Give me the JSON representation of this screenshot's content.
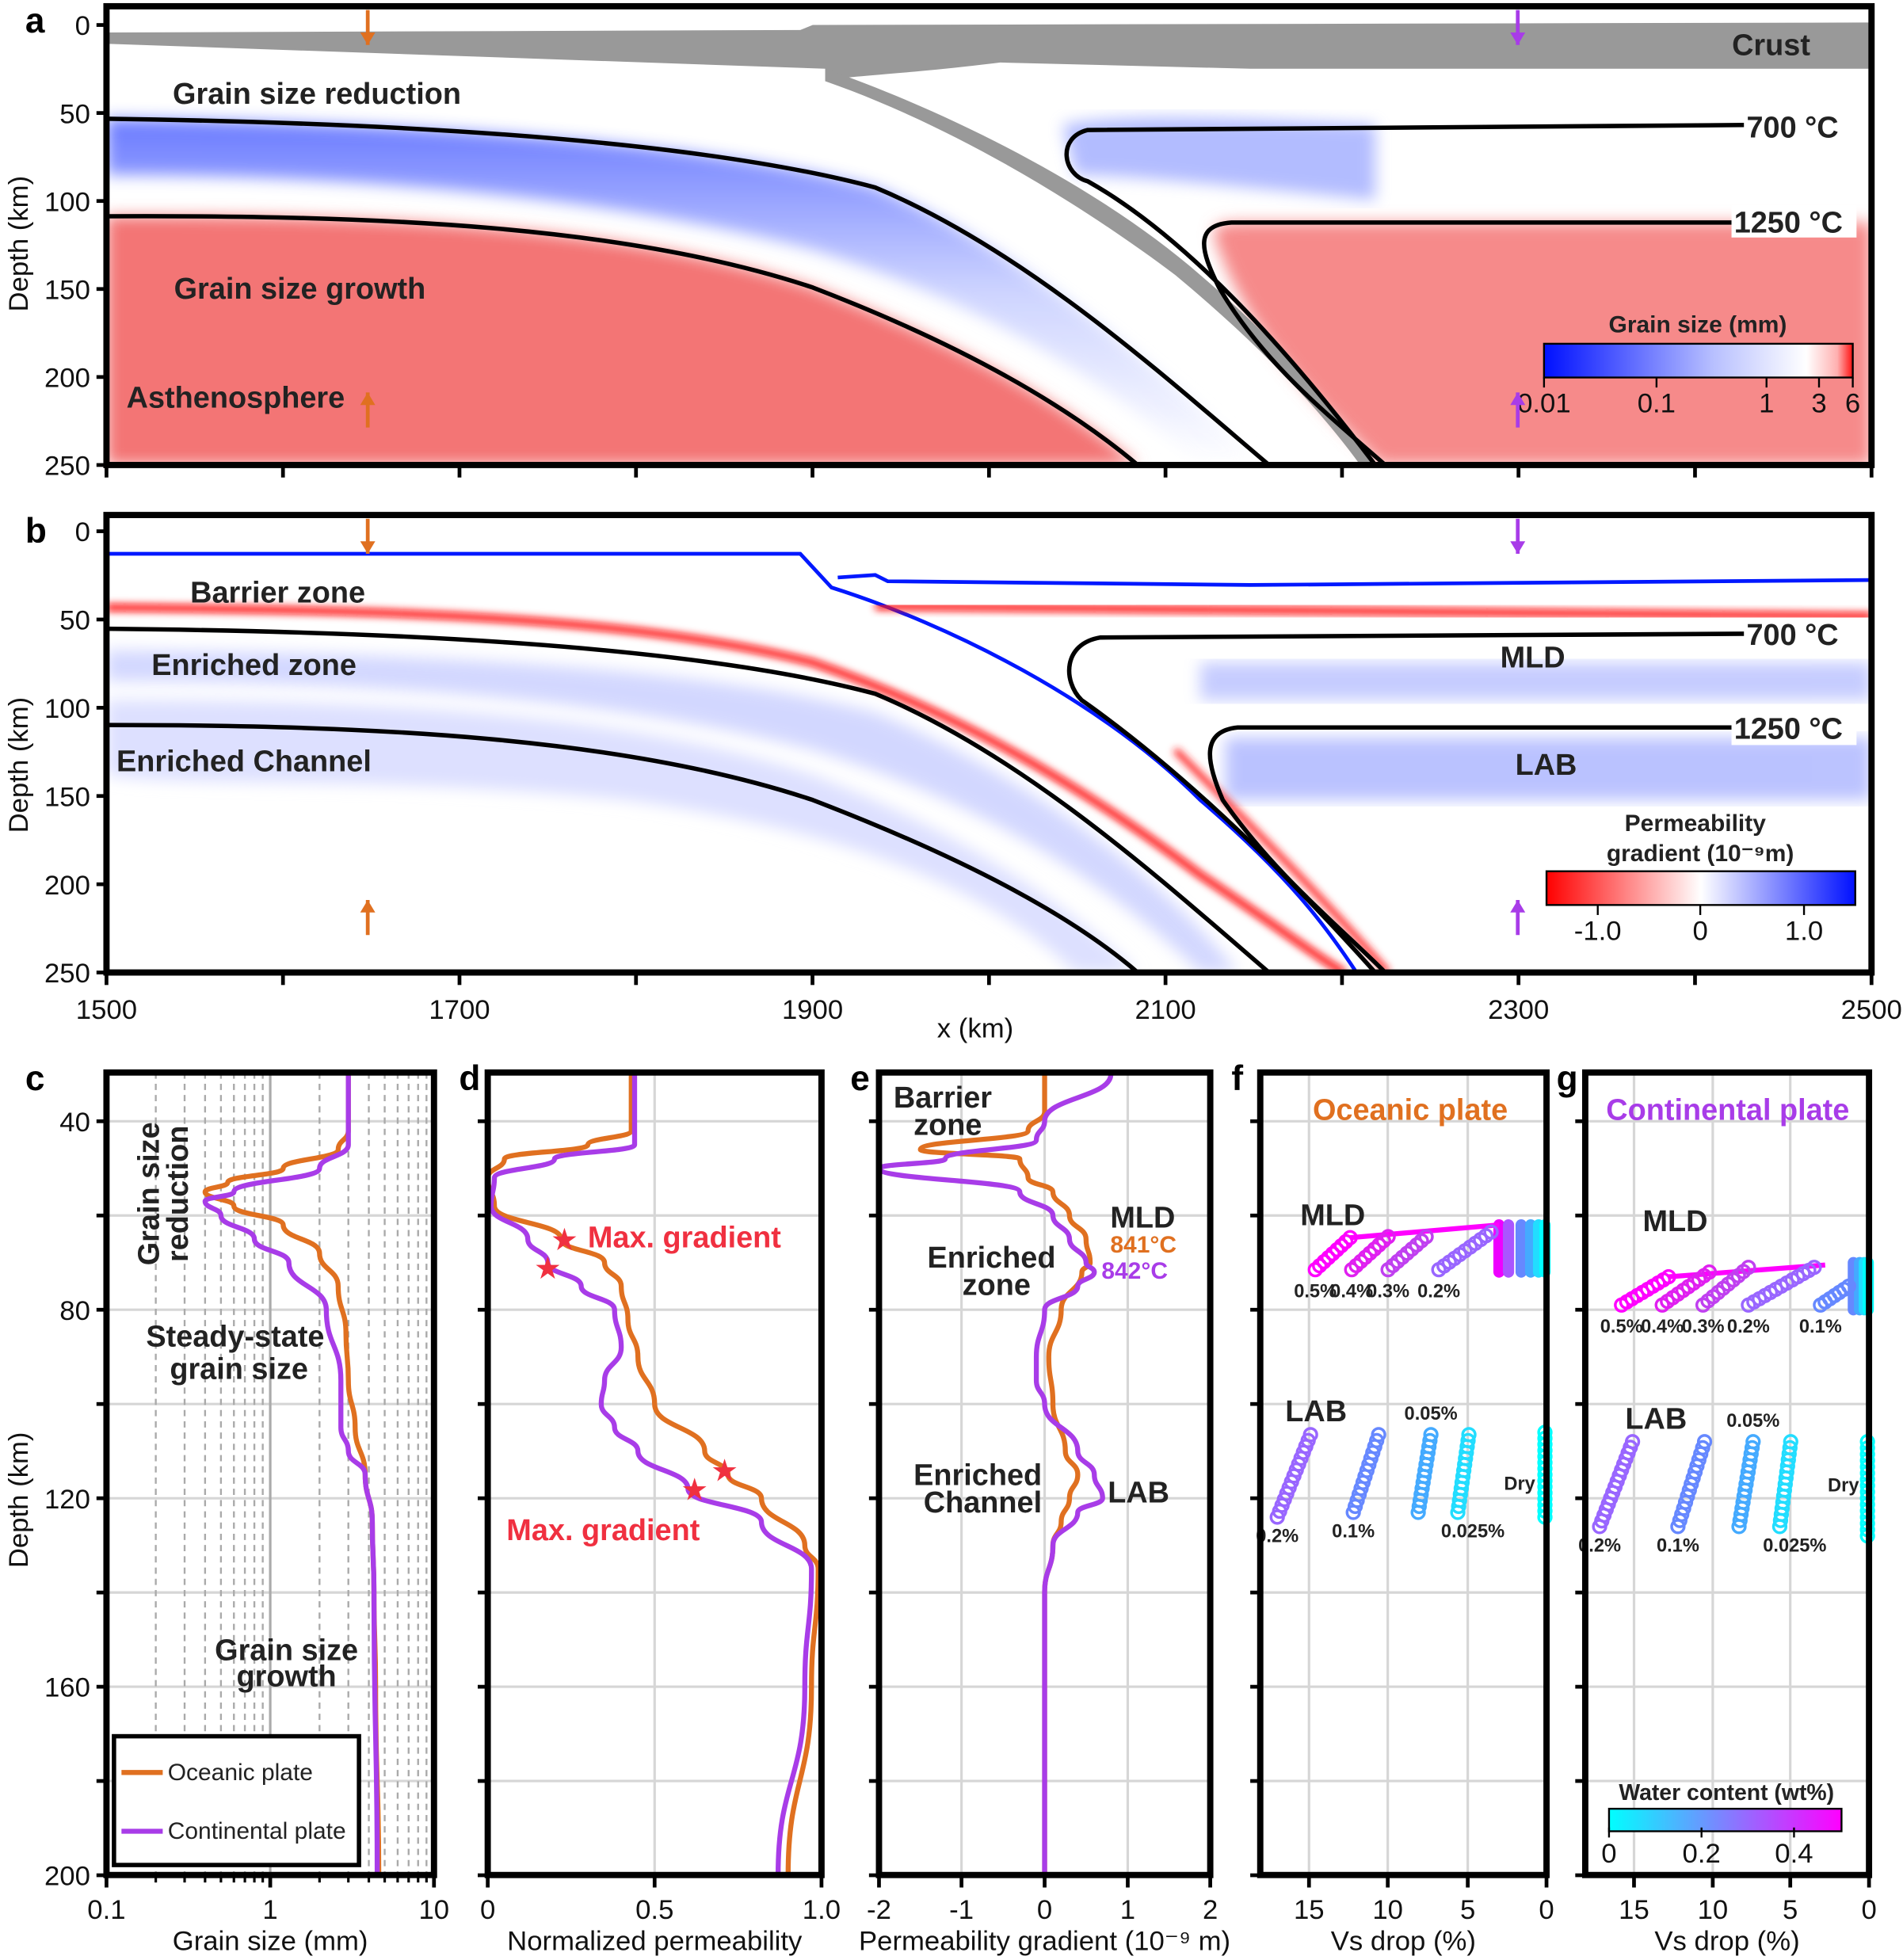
{
  "colors": {
    "oceanic": "#e07020",
    "continental": "#a83ce8",
    "red_label": "#f03040",
    "black": "#000000"
  },
  "panel_a": {
    "letter": "a",
    "ylabel": "Depth (km)",
    "yticks": [
      "0",
      "50",
      "100",
      "150",
      "200",
      "250"
    ],
    "labels": {
      "crust": "Crust",
      "reduction": "Grain size reduction",
      "growth": "Grain size growth",
      "astheno": "Asthenosphere",
      "c700": "700 °C",
      "c1250": "1250 °C"
    },
    "colorbar": {
      "title": "Grain size (mm)",
      "ticks": [
        "0.01",
        "0.1",
        "1",
        "3",
        "6"
      ]
    }
  },
  "panel_b": {
    "letter": "b",
    "ylabel": "Depth (km)",
    "yticks": [
      "0",
      "50",
      "100",
      "150",
      "200",
      "250"
    ],
    "labels": {
      "barrier": "Barrier zone",
      "enriched": "Enriched zone",
      "channel": "Enriched Channel",
      "mld": "MLD",
      "lab": "LAB",
      "c700": "700 °C",
      "c1250": "1250 °C"
    },
    "colorbar": {
      "title1": "Permeability",
      "title2": "gradient (10⁻⁹m)",
      "ticks": [
        "-1.0",
        "0",
        "1.0"
      ]
    }
  },
  "xaxis_ab": {
    "label": "x (km)",
    "ticks": [
      "1500",
      "1700",
      "1900",
      "2100",
      "2300",
      "2500"
    ]
  },
  "chart_data": [
    {
      "id": "c",
      "type": "line",
      "letter": "c",
      "xlabel": "Grain size (mm)",
      "ylabel": "Depth (km)",
      "xscale": "log",
      "xlim": [
        0.1,
        10
      ],
      "ylim": [
        200,
        30
      ],
      "xticks": [
        "0.1",
        "1",
        "10"
      ],
      "yticks": [
        "40",
        "80",
        "120",
        "160",
        "200"
      ],
      "annotations": {
        "reduction1": "Grain size",
        "reduction2": "reduction",
        "steady1": "Steady-state",
        "steady2": "grain size",
        "growth1": "Grain size",
        "growth2": "growth"
      },
      "legend": {
        "placement": "bottom-left",
        "entries": [
          "Oceanic plate",
          "Continental plate"
        ]
      },
      "series": [
        {
          "name": "Oceanic plate",
          "depth": [
            30,
            42,
            46,
            50,
            53,
            55,
            58,
            62,
            68,
            75,
            85,
            95,
            105,
            115,
            125,
            140,
            160,
            200
          ],
          "value": [
            3,
            3,
            2.6,
            1.2,
            0.55,
            0.4,
            0.6,
            1.2,
            2,
            2.6,
            2.9,
            3,
            3.3,
            3.8,
            4.2,
            4.3,
            4.4,
            4.6
          ]
        },
        {
          "name": "Continental plate",
          "depth": [
            30,
            45,
            50,
            55,
            57,
            60,
            65,
            70,
            80,
            95,
            105,
            110,
            115,
            125,
            140,
            200
          ],
          "value": [
            3,
            3,
            2,
            0.6,
            0.4,
            0.5,
            0.8,
            1.3,
            2.2,
            2.7,
            2.7,
            3.0,
            3.8,
            4.2,
            4.3,
            4.5
          ]
        }
      ]
    },
    {
      "id": "d",
      "type": "line",
      "letter": "d",
      "xlabel": "Normalized permeability",
      "xlim": [
        0,
        1
      ],
      "ylim": [
        200,
        30
      ],
      "xticks": [
        "0",
        "0.5",
        "1.0"
      ],
      "annotations": {
        "maxgrad1": "Max. gradient",
        "maxgrad2": "Max. gradient"
      },
      "series": [
        {
          "name": "Oceanic plate",
          "depth": [
            30,
            42,
            45,
            48,
            52,
            58,
            65,
            70,
            75,
            82,
            90,
            100,
            110,
            115,
            120,
            130,
            135,
            160,
            200
          ],
          "value": [
            0.43,
            0.43,
            0.3,
            0.05,
            0,
            0.02,
            0.22,
            0.35,
            0.4,
            0.42,
            0.45,
            0.5,
            0.65,
            0.72,
            0.82,
            0.95,
            0.99,
            0.97,
            0.9
          ],
          "max_gradient": [
            [
              0.23,
              65
            ],
            [
              0.71,
              114
            ]
          ]
        },
        {
          "name": "Continental plate",
          "depth": [
            30,
            45,
            48,
            52,
            58,
            65,
            70,
            75,
            80,
            88,
            95,
            100,
            105,
            110,
            118,
            125,
            135,
            160,
            200
          ],
          "value": [
            0.44,
            0.44,
            0.2,
            0.02,
            0.01,
            0.12,
            0.18,
            0.28,
            0.38,
            0.4,
            0.35,
            0.34,
            0.38,
            0.45,
            0.6,
            0.82,
            0.97,
            0.95,
            0.87
          ],
          "max_gradient": [
            [
              0.18,
              71
            ],
            [
              0.62,
              118
            ]
          ]
        }
      ]
    },
    {
      "id": "e",
      "type": "line",
      "letter": "e",
      "xlabel": "Permeability gradient (10⁻⁹ m)",
      "xlim": [
        -2,
        2
      ],
      "ylim": [
        200,
        30
      ],
      "xticks": [
        "-2",
        "-1",
        "0",
        "1",
        "2"
      ],
      "annotations": {
        "barrier1": "Barrier",
        "barrier2": "zone",
        "enriched1": "Enriched",
        "enriched2": "zone",
        "channel1": "Enriched",
        "channel2": "Channel",
        "mld": "MLD",
        "t_oc": "841°C",
        "t_co": "842°C",
        "lab": "LAB"
      },
      "series": [
        {
          "name": "Oceanic plate",
          "depth": [
            30,
            38,
            42,
            46,
            48,
            52,
            55,
            60,
            65,
            70,
            72,
            80,
            90,
            100,
            110,
            115,
            120,
            125,
            130,
            140,
            160,
            200
          ],
          "value": [
            0,
            0,
            -0.2,
            -1.5,
            -0.3,
            -0.2,
            0.1,
            0.3,
            0.5,
            0.55,
            0.45,
            0.2,
            0.05,
            0.1,
            0.25,
            0.4,
            0.3,
            0.2,
            0.1,
            0,
            0,
            0
          ]
        },
        {
          "name": "Continental plate",
          "depth": [
            30,
            40,
            44,
            48,
            50,
            55,
            60,
            65,
            70,
            72,
            75,
            80,
            90,
            95,
            100,
            110,
            115,
            120,
            123,
            130,
            140,
            200
          ],
          "value": [
            0.8,
            0,
            -0.1,
            -1.2,
            -2,
            -0.3,
            0.1,
            0.3,
            0.5,
            0.6,
            0.4,
            0,
            -0.1,
            -0.1,
            0,
            0.4,
            0.6,
            0.7,
            0.4,
            0.1,
            0,
            0
          ]
        }
      ]
    },
    {
      "id": "f",
      "type": "scatter",
      "letter": "f",
      "title": "Oceanic  plate",
      "xlabel": "Vs drop (%)",
      "xlim": [
        17,
        0
      ],
      "ylim": [
        200,
        30
      ],
      "xticks": [
        "15",
        "10",
        "5",
        "0"
      ],
      "annotations": {
        "mld": "MLD",
        "lab": "LAB",
        "dry": "Dry"
      },
      "mld_series": [
        {
          "name": "0.5%",
          "color": "#ff00ff",
          "points": [
            [
              14.6,
              71.5
            ],
            [
              12.4,
              64.7
            ]
          ]
        },
        {
          "name": "0.4%",
          "color": "#e020f0",
          "points": [
            [
              12.3,
              71.5
            ],
            [
              10.0,
              64.5
            ]
          ]
        },
        {
          "name": "0.3%",
          "color": "#c040f0",
          "points": [
            [
              10.0,
              71.5
            ],
            [
              7.6,
              64.5
            ]
          ]
        },
        {
          "name": "0.2%",
          "color": "#9966ff",
          "points": [
            [
              6.8,
              71.5
            ],
            [
              3.5,
              63.5
            ]
          ]
        }
      ],
      "mld_link": [
        [
          12.4,
          64.7
        ],
        [
          3.0,
          62
        ]
      ],
      "mld_bars": [
        {
          "color": "#ee00ff",
          "vs": 3.0
        },
        {
          "color": "#aa55ff",
          "vs": 2.4
        },
        {
          "color": "#6688ff",
          "vs": 1.6
        },
        {
          "color": "#44aaff",
          "vs": 1.0
        },
        {
          "color": "#22ddff",
          "vs": 0.5
        },
        {
          "color": "#00ffff",
          "vs": 0.1
        }
      ],
      "mld_bar_depth": [
        62,
        72
      ],
      "lab_series": [
        {
          "name": "0.2%",
          "color": "#9966ff",
          "points": [
            [
              17.0,
              124
            ],
            [
              14.9,
              106.5
            ]
          ]
        },
        {
          "name": "0.1%",
          "color": "#6688ff",
          "points": [
            [
              12.2,
              123
            ],
            [
              10.6,
              106.5
            ]
          ]
        },
        {
          "name": "0.05%",
          "color": "#44aaff",
          "points": [
            [
              8.1,
              123
            ],
            [
              7.3,
              106.5
            ]
          ]
        },
        {
          "name": "0.025%",
          "color": "#22ddff",
          "points": [
            [
              5.6,
              123
            ],
            [
              4.9,
              106.5
            ]
          ]
        },
        {
          "name": "Dry",
          "color": "#00ffff",
          "points": [
            [
              0.1,
              124
            ],
            [
              0.1,
              106
            ]
          ]
        }
      ]
    },
    {
      "id": "g",
      "type": "scatter",
      "letter": "g",
      "title": "Continental  plate",
      "xlabel": "Vs drop (%)",
      "xlim": [
        18,
        0
      ],
      "ylim": [
        200,
        30
      ],
      "xticks": [
        "15",
        "10",
        "5",
        "0"
      ],
      "annotations": {
        "mld": "MLD",
        "lab": "LAB",
        "dry": "Dry"
      },
      "colorbar": {
        "title": "Water content (wt%)",
        "ticks": [
          "0",
          "0.2",
          "0.4"
        ]
      },
      "mld_series": [
        {
          "name": "0.5%",
          "color": "#ff00ff",
          "points": [
            [
              15.8,
              79
            ],
            [
              12.8,
              73
            ]
          ]
        },
        {
          "name": "0.4%",
          "color": "#e020f0",
          "points": [
            [
              13.2,
              79
            ],
            [
              10.2,
              72
            ]
          ]
        },
        {
          "name": "0.3%",
          "color": "#c040f0",
          "points": [
            [
              10.6,
              79
            ],
            [
              7.7,
              71
            ]
          ]
        },
        {
          "name": "0.2%",
          "color": "#9966ff",
          "points": [
            [
              7.7,
              79
            ],
            [
              3.5,
              71
            ]
          ]
        },
        {
          "name": "0.1%",
          "color": "#6688ff",
          "points": [
            [
              3.1,
              79
            ],
            [
              1.3,
              75
            ]
          ]
        }
      ],
      "mld_link": [
        [
          12.8,
          73
        ],
        [
          2.8,
          70.5
        ]
      ],
      "mld_bars": [
        {
          "color": "#6688ff",
          "vs": 1.0
        },
        {
          "color": "#44aaff",
          "vs": 0.6
        },
        {
          "color": "#22ddff",
          "vs": 0.3
        },
        {
          "color": "#00ffff",
          "vs": 0.05
        }
      ],
      "mld_bar_depth": [
        70,
        80
      ],
      "lab_series": [
        {
          "name": "0.2%",
          "color": "#9966ff",
          "points": [
            [
              17.2,
              126
            ],
            [
              15.1,
              108
            ]
          ]
        },
        {
          "name": "0.1%",
          "color": "#6688ff",
          "points": [
            [
              12.2,
              126
            ],
            [
              10.5,
              108
            ]
          ]
        },
        {
          "name": "0.05%",
          "color": "#44aaff",
          "points": [
            [
              8.3,
              126
            ],
            [
              7.4,
              108
            ]
          ]
        },
        {
          "name": "0.025%",
          "color": "#22ddff",
          "points": [
            [
              5.7,
              126
            ],
            [
              5.0,
              108
            ]
          ]
        },
        {
          "name": "Dry",
          "color": "#00ffff",
          "points": [
            [
              0.1,
              128
            ],
            [
              0.1,
              108
            ]
          ]
        }
      ]
    }
  ]
}
